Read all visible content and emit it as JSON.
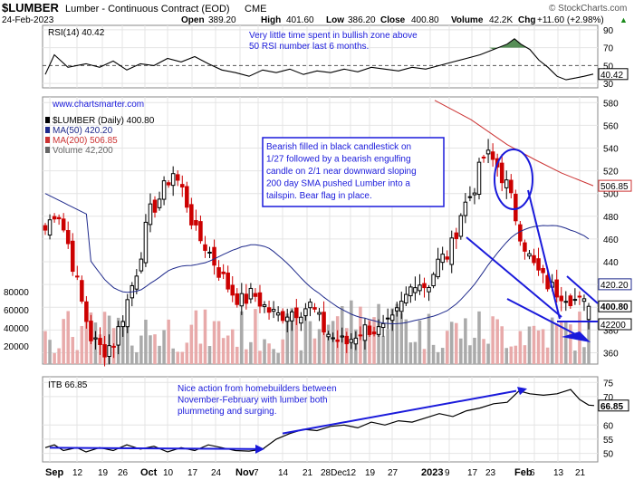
{
  "header": {
    "symbol": "$LUMBER",
    "description": "Lumber - Continuous Contract (EOD)",
    "exchange": "CME",
    "date": "24-Feb-2023",
    "open_label": "Open",
    "open": "389.20",
    "high_label": "High",
    "high": "401.60",
    "low_label": "Low",
    "low": "386.20",
    "close_label": "Close",
    "close": "400.80",
    "volume_label": "Volume",
    "volume": "42.2K",
    "chg_label": "Chg",
    "chg": "+11.60 (+2.98%)",
    "arrow": "▲",
    "brand": "© StockCharts.com"
  },
  "colors": {
    "up": "#000000",
    "down": "#cc0000",
    "ma50": "#1f2a8c",
    "ma200": "#cc3333",
    "vol_up": "#aaaaaa",
    "vol_down": "#e8aaaa",
    "annotation": "#1a1adb",
    "rsi_fill": "#3a7a3a",
    "grid": "#e4e4e4"
  },
  "rsi_panel": {
    "label": "RSI(14) 40.42",
    "note": [
      "Very little time spent in bullish zone above",
      "50 RSI number last 6 months."
    ],
    "ticks": [
      "90",
      "70",
      "50",
      "30"
    ],
    "current_tag": "40.42"
  },
  "price_panel": {
    "watermark": "www.chartsmarter.com",
    "legend": [
      {
        "text": "$LUMBER (Daily) 400.80",
        "icon": "candle-icon"
      },
      {
        "text": "MA(50) 420.20",
        "icon": "line-blue-icon"
      },
      {
        "text": "MA(200) 506.85",
        "icon": "line-red-icon"
      },
      {
        "text": "Volume 42,200",
        "icon": "volume-bars-icon"
      }
    ],
    "note": [
      "Bearish filled in black candlestick on",
      "1/27 followed by a bearish engulfing",
      "candle on 2/1 near downward sloping",
      "200 day SMA pushed Lumber into a",
      "tailspin. Bear flag in place."
    ],
    "price_ticks": [
      "580",
      "560",
      "540",
      "520",
      "500",
      "480",
      "460",
      "440",
      "420",
      "400",
      "380",
      "360"
    ],
    "volume_ticks": [
      "80000",
      "60000",
      "40000",
      "20000"
    ],
    "tags": {
      "ma200": "506.85",
      "ma50": "420.20",
      "close": "400.80",
      "volume": "42200"
    }
  },
  "itb_panel": {
    "label": "ITB 66.85",
    "note": [
      "Nice action from homebuilders between",
      "November-February with lumber both",
      "plummeting and surging."
    ],
    "ticks": [
      "75",
      "70",
      "60",
      "55",
      "50"
    ],
    "current_tag": "66.85"
  },
  "x_axis": {
    "labels": [
      "Sep",
      "12",
      "19",
      "26",
      "Oct",
      "10",
      "17",
      "24",
      "Nov",
      "7",
      "14",
      "21",
      "28Dec",
      "12",
      "19",
      "27",
      "2023",
      "9",
      "17",
      "23",
      "Feb",
      "6",
      "13",
      "21"
    ],
    "bold": [
      "Sep",
      "Oct",
      "Nov",
      "Dec",
      "2023",
      "Feb"
    ]
  },
  "chart_data": {
    "type": "candlestick",
    "title": "$LUMBER Lumber - Continuous Contract (EOD) CME",
    "date_range": [
      "2022-09",
      "2023-02-24"
    ],
    "last_bar": {
      "date": "2023-02-24",
      "open": 389.2,
      "high": 401.6,
      "low": 386.2,
      "close": 400.8,
      "volume": 42200,
      "change": 11.6,
      "change_pct": 2.98
    },
    "price_axis": {
      "ylim": [
        350,
        585
      ],
      "ticks": [
        580,
        560,
        540,
        520,
        500,
        480,
        460,
        440,
        420,
        400,
        380,
        360
      ]
    },
    "volume_axis": {
      "ticks": [
        80000,
        60000,
        40000,
        20000
      ]
    },
    "overlays": [
      {
        "name": "MA(50)",
        "last": 420.2
      },
      {
        "name": "MA(200)",
        "last": 506.85
      },
      {
        "name": "Volume",
        "last": 42200
      }
    ],
    "rsi": {
      "name": "RSI(14)",
      "period": 14,
      "last": 40.42,
      "ylim": [
        25,
        95
      ],
      "ticks": [
        90,
        70,
        50,
        30
      ]
    },
    "itb": {
      "name": "ITB",
      "last": 66.85,
      "ylim": [
        47,
        77
      ],
      "ticks": [
        75,
        70,
        60,
        55,
        50
      ]
    },
    "weekly_close_path": [
      468,
      488,
      455,
      410,
      372,
      362,
      370,
      402,
      436,
      482,
      498,
      520,
      500,
      465,
      452,
      432,
      415,
      405,
      412,
      400,
      392,
      396,
      398,
      402,
      382,
      372,
      368,
      378,
      382,
      378,
      386,
      405,
      425,
      418,
      440,
      448,
      485,
      503,
      535,
      526,
      505,
      468,
      440,
      425,
      415,
      412,
      405,
      400
    ]
  }
}
